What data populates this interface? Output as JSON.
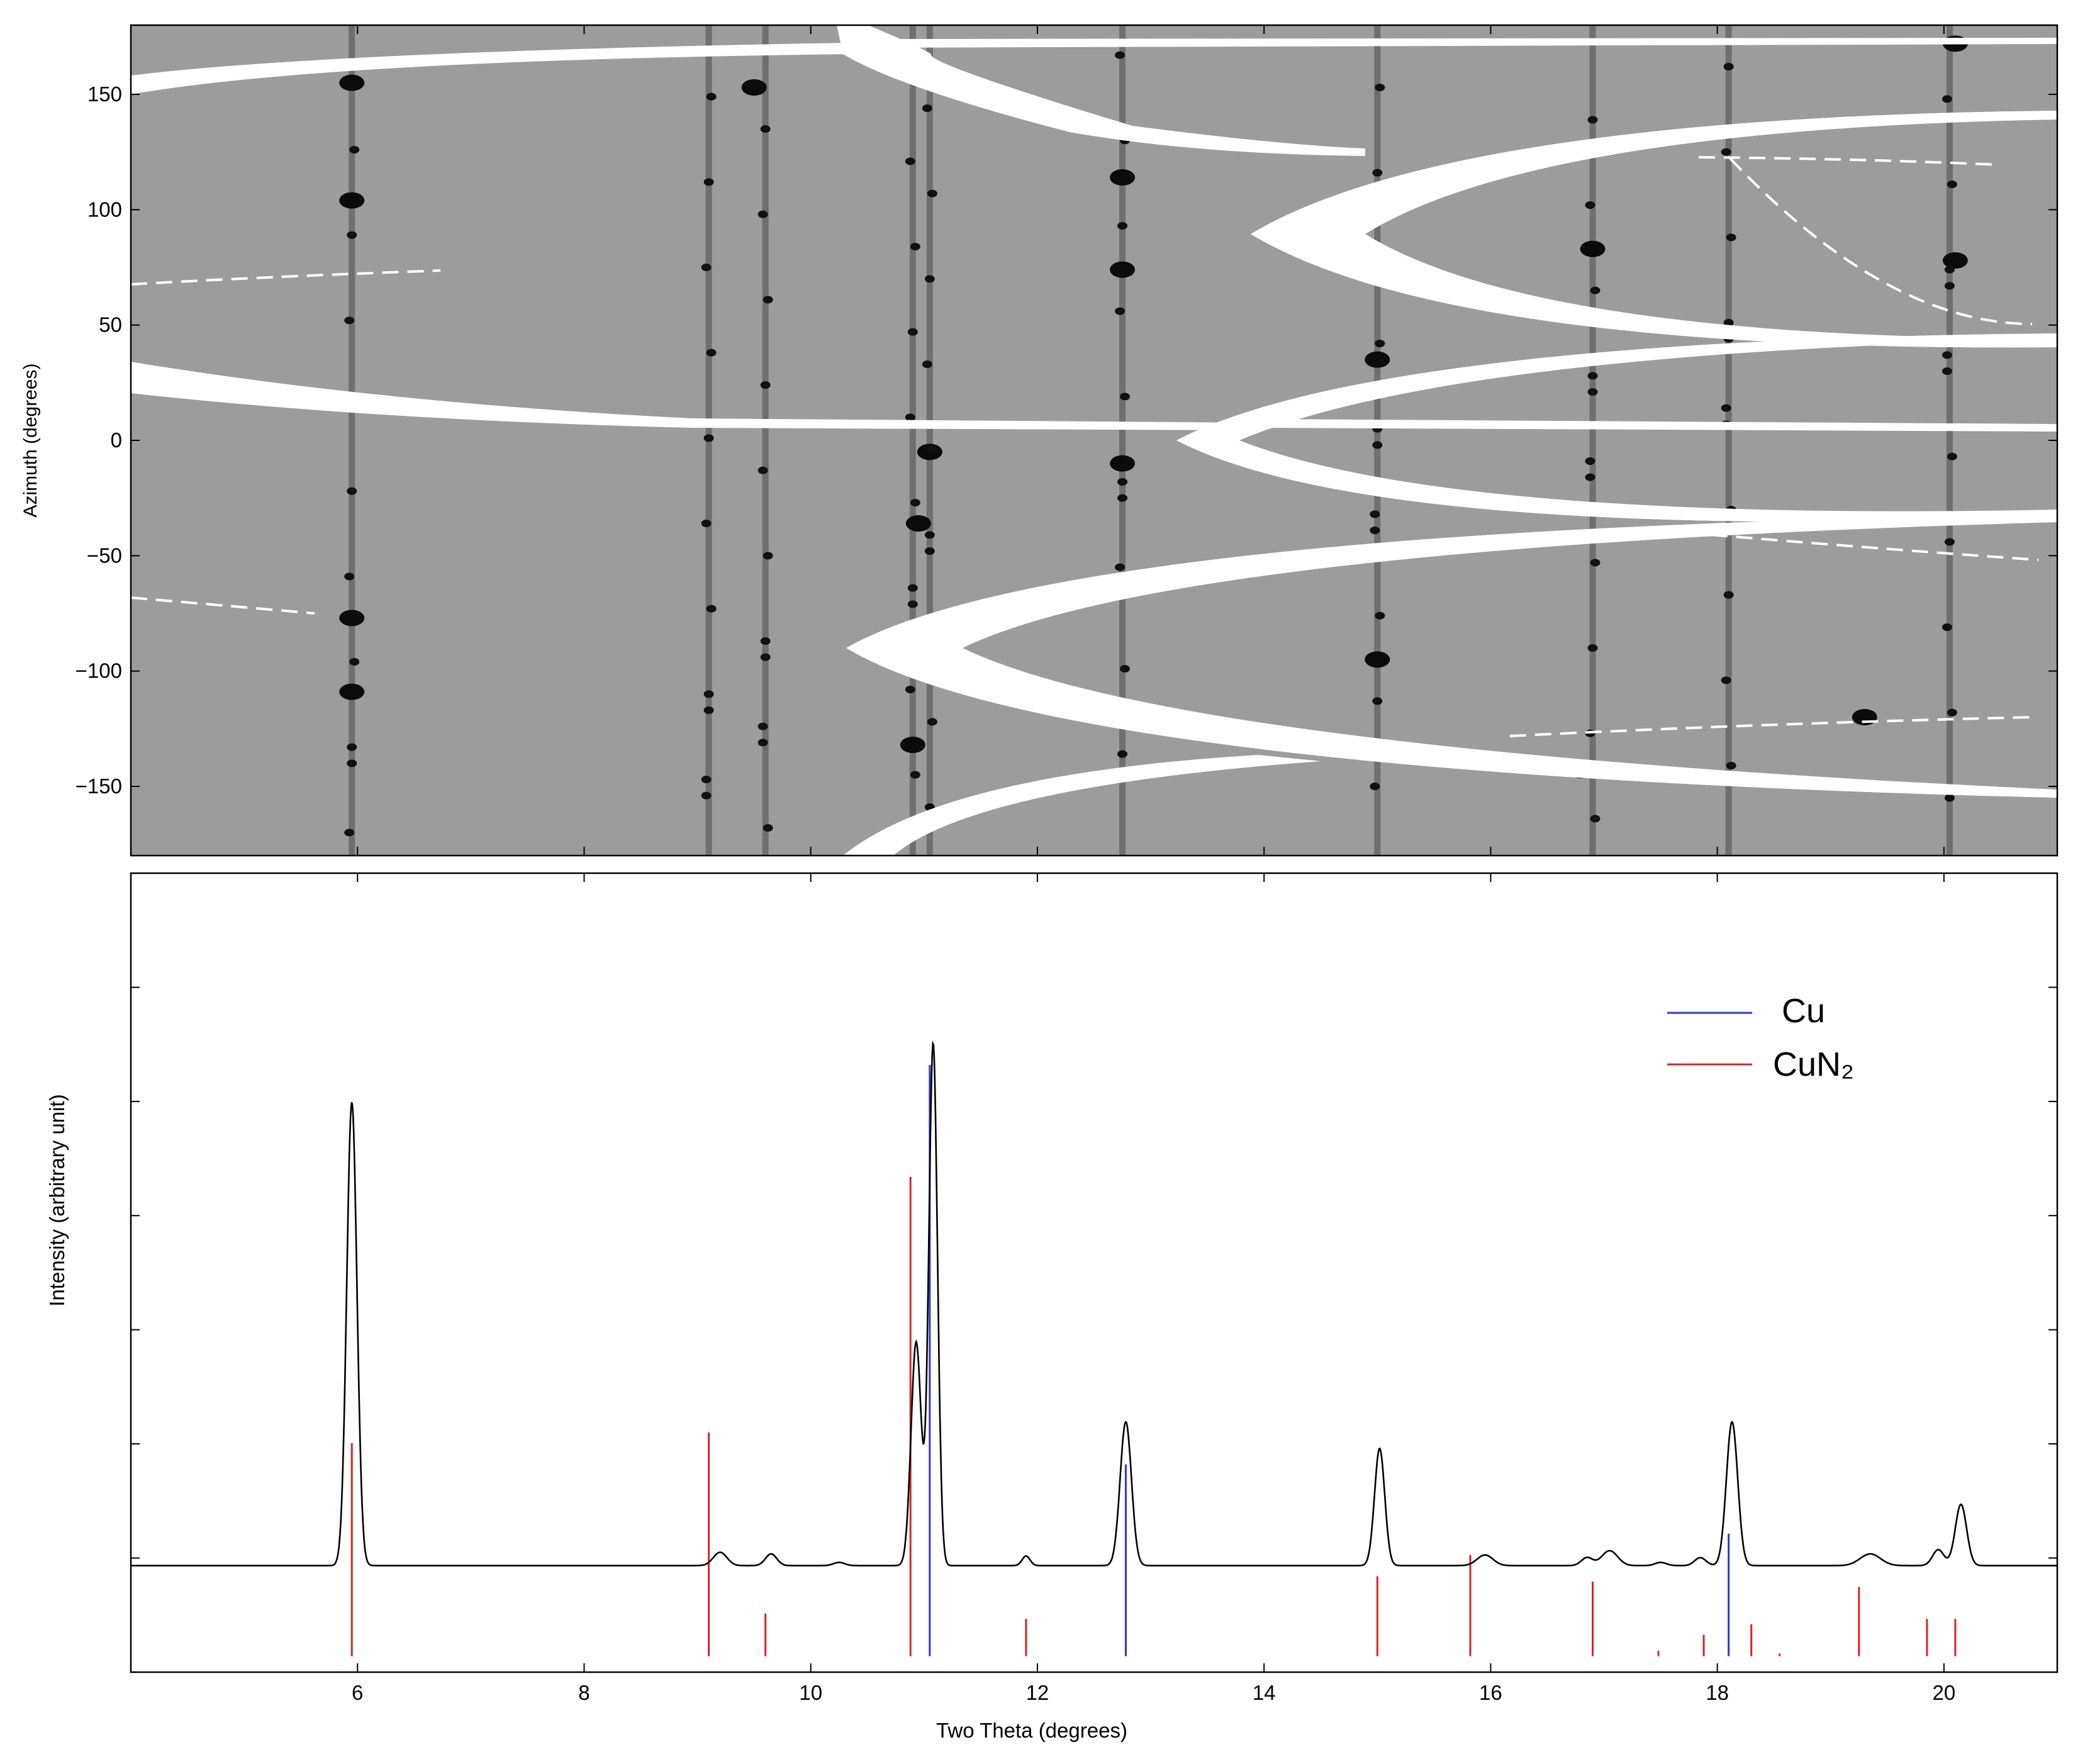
{
  "chart_data": [
    {
      "type": "heatmap",
      "title": "",
      "xlabel": "",
      "ylabel": "Azimuth (degrees)",
      "xlim": [
        4.0,
        21.0
      ],
      "ylim": [
        -180,
        180
      ],
      "y_ticks": [
        -150,
        -100,
        -50,
        0,
        50,
        100,
        150
      ],
      "y_tick_labels": [
        "−150",
        "−100",
        "−50",
        "0",
        "50",
        "100",
        "150"
      ],
      "colormap": "gray (dark = high intensity)",
      "background_color": "#9c9c9c",
      "diffraction_lines_two_theta": [
        5.95,
        9.1,
        9.6,
        10.9,
        11.05,
        12.75,
        15.0,
        16.9,
        18.1,
        20.05
      ],
      "intense_spots": [
        {
          "two_theta": 5.95,
          "azimuth": 104
        },
        {
          "two_theta": 5.95,
          "azimuth": 155
        },
        {
          "two_theta": 5.95,
          "azimuth": -77
        },
        {
          "two_theta": 5.95,
          "azimuth": -109
        },
        {
          "two_theta": 9.5,
          "azimuth": 153
        },
        {
          "two_theta": 10.9,
          "azimuth": -132
        },
        {
          "two_theta": 11.05,
          "azimuth": -5
        },
        {
          "two_theta": 10.95,
          "azimuth": -36
        },
        {
          "two_theta": 12.75,
          "azimuth": 114
        },
        {
          "two_theta": 12.75,
          "azimuth": -10
        },
        {
          "two_theta": 12.75,
          "azimuth": 74
        },
        {
          "two_theta": 15.0,
          "azimuth": 35
        },
        {
          "two_theta": 15.0,
          "azimuth": -95
        },
        {
          "two_theta": 16.9,
          "azimuth": 83
        },
        {
          "two_theta": 16.8,
          "azimuth": -143
        },
        {
          "two_theta": 19.3,
          "azimuth": -120
        },
        {
          "two_theta": 20.1,
          "azimuth": 78
        },
        {
          "two_theta": 20.1,
          "azimuth": 172
        }
      ]
    },
    {
      "type": "line",
      "title": "",
      "xlabel": "Two Theta (degrees)",
      "ylabel": "Intensity (arbitrary unit)",
      "xlim": [
        4.0,
        21.0
      ],
      "ylim": [
        -0.2,
        1.3
      ],
      "x_ticks": [
        6,
        8,
        10,
        12,
        14,
        16,
        18,
        20
      ],
      "x_tick_labels": [
        "6",
        "8",
        "10",
        "12",
        "14",
        "16",
        "18",
        "20"
      ],
      "legend_position": "top-right",
      "pattern": {
        "color": "#000000",
        "baseline": 0.0,
        "peaks": [
          {
            "two_theta": 5.95,
            "height": 0.87,
            "width": 0.045
          },
          {
            "two_theta": 9.2,
            "height": 0.025,
            "width": 0.06
          },
          {
            "two_theta": 9.65,
            "height": 0.022,
            "width": 0.05
          },
          {
            "two_theta": 10.25,
            "height": 0.006,
            "width": 0.05
          },
          {
            "two_theta": 10.93,
            "height": 0.42,
            "width": 0.045
          },
          {
            "two_theta": 11.08,
            "height": 0.98,
            "width": 0.038
          },
          {
            "two_theta": 11.9,
            "height": 0.018,
            "width": 0.035
          },
          {
            "two_theta": 12.78,
            "height": 0.27,
            "width": 0.05
          },
          {
            "two_theta": 15.02,
            "height": 0.22,
            "width": 0.045
          },
          {
            "two_theta": 15.95,
            "height": 0.02,
            "width": 0.07
          },
          {
            "two_theta": 16.85,
            "height": 0.015,
            "width": 0.05
          },
          {
            "two_theta": 17.05,
            "height": 0.028,
            "width": 0.07
          },
          {
            "two_theta": 17.5,
            "height": 0.006,
            "width": 0.05
          },
          {
            "two_theta": 17.85,
            "height": 0.015,
            "width": 0.05
          },
          {
            "two_theta": 18.13,
            "height": 0.27,
            "width": 0.05
          },
          {
            "two_theta": 19.35,
            "height": 0.022,
            "width": 0.09
          },
          {
            "two_theta": 19.95,
            "height": 0.03,
            "width": 0.05
          },
          {
            "two_theta": 20.15,
            "height": 0.115,
            "width": 0.05
          }
        ]
      },
      "series": [
        {
          "name": "Cu",
          "color": "#3333dd",
          "x": [
            11.05,
            12.78,
            18.1
          ],
          "y": [
            0.94,
            0.19,
            0.06
          ],
          "baseline": -0.17
        },
        {
          "name": "CuN₂",
          "color": "#dd2222",
          "x": [
            5.95,
            9.1,
            9.6,
            10.88,
            11.9,
            15.0,
            15.82,
            16.9,
            17.48,
            17.88,
            18.3,
            18.55,
            19.25,
            19.85,
            20.1
          ],
          "y": [
            0.23,
            0.25,
            -0.09,
            0.73,
            -0.1,
            -0.02,
            0.02,
            -0.03,
            -0.16,
            -0.13,
            -0.11,
            -0.165,
            -0.04,
            -0.1,
            -0.1
          ],
          "baseline": -0.17
        }
      ]
    }
  ]
}
